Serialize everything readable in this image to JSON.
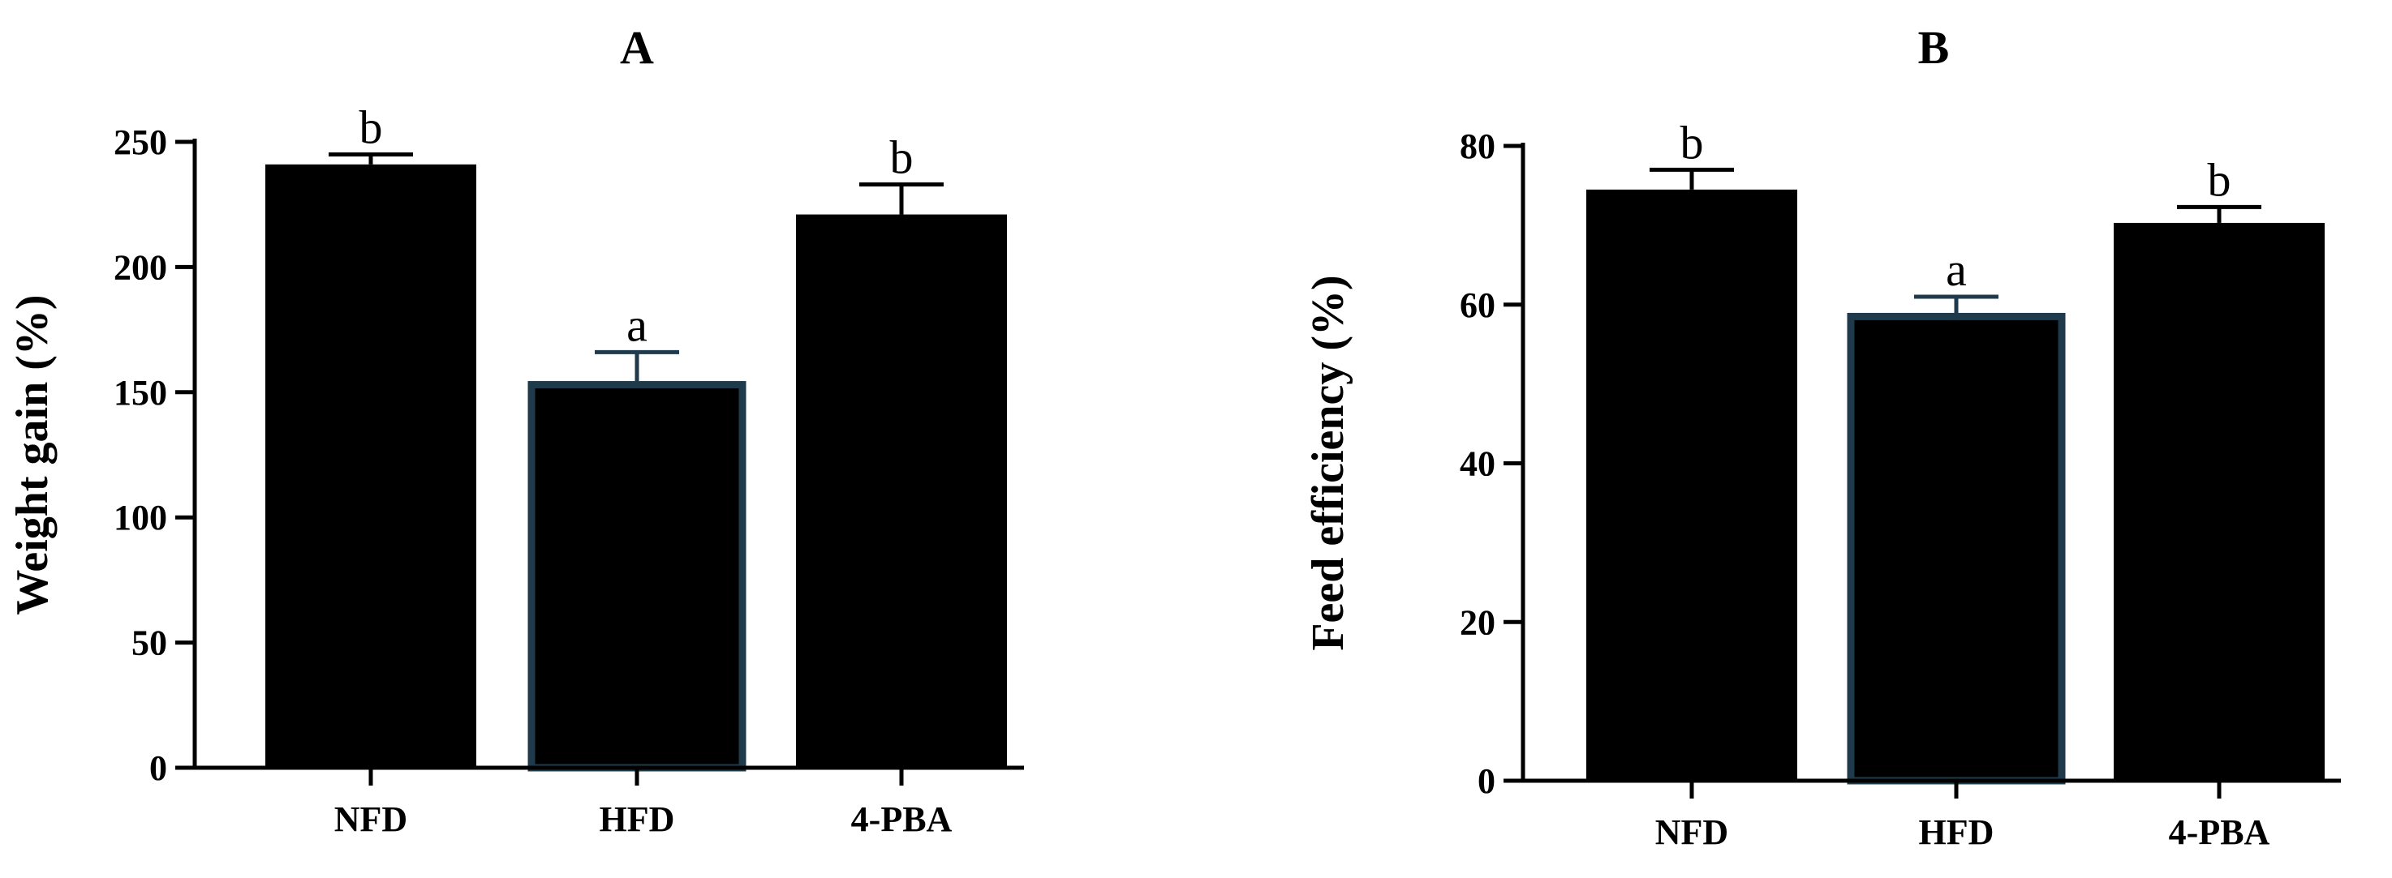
{
  "chart_data": [
    {
      "type": "bar",
      "title": "A",
      "xlabel": "",
      "ylabel": "Weight gain (%)",
      "categories": [
        "NFD",
        "HFD",
        "4-PBA"
      ],
      "values": [
        241,
        153,
        221
      ],
      "errors": [
        4,
        13,
        12
      ],
      "significance": [
        "b",
        "a",
        "b"
      ],
      "ylim": [
        0,
        250
      ],
      "yticks": [
        0,
        50,
        100,
        150,
        200,
        250
      ],
      "ytick_labels": [
        "0",
        "50",
        "100",
        "150",
        "200",
        "250"
      ],
      "bar_color": "#000000",
      "highlight_border_color": "#1f3a4a",
      "grid": false,
      "legend": "none"
    },
    {
      "type": "bar",
      "title": "B",
      "xlabel": "",
      "ylabel": "Feed efficiency (%)",
      "categories": [
        "NFD",
        "HFD",
        "4-PBA"
      ],
      "values": [
        74.5,
        58.5,
        70.3
      ],
      "errors": [
        2.5,
        2.5,
        2
      ],
      "significance": [
        "b",
        "a",
        "b"
      ],
      "ylim": [
        0,
        80
      ],
      "yticks": [
        0,
        20,
        40,
        60,
        80
      ],
      "ytick_labels": [
        "0",
        "20",
        "40",
        "60",
        "80"
      ],
      "bar_color": "#000000",
      "highlight_border_color": "#1f3a4a",
      "grid": false,
      "legend": "none"
    }
  ]
}
